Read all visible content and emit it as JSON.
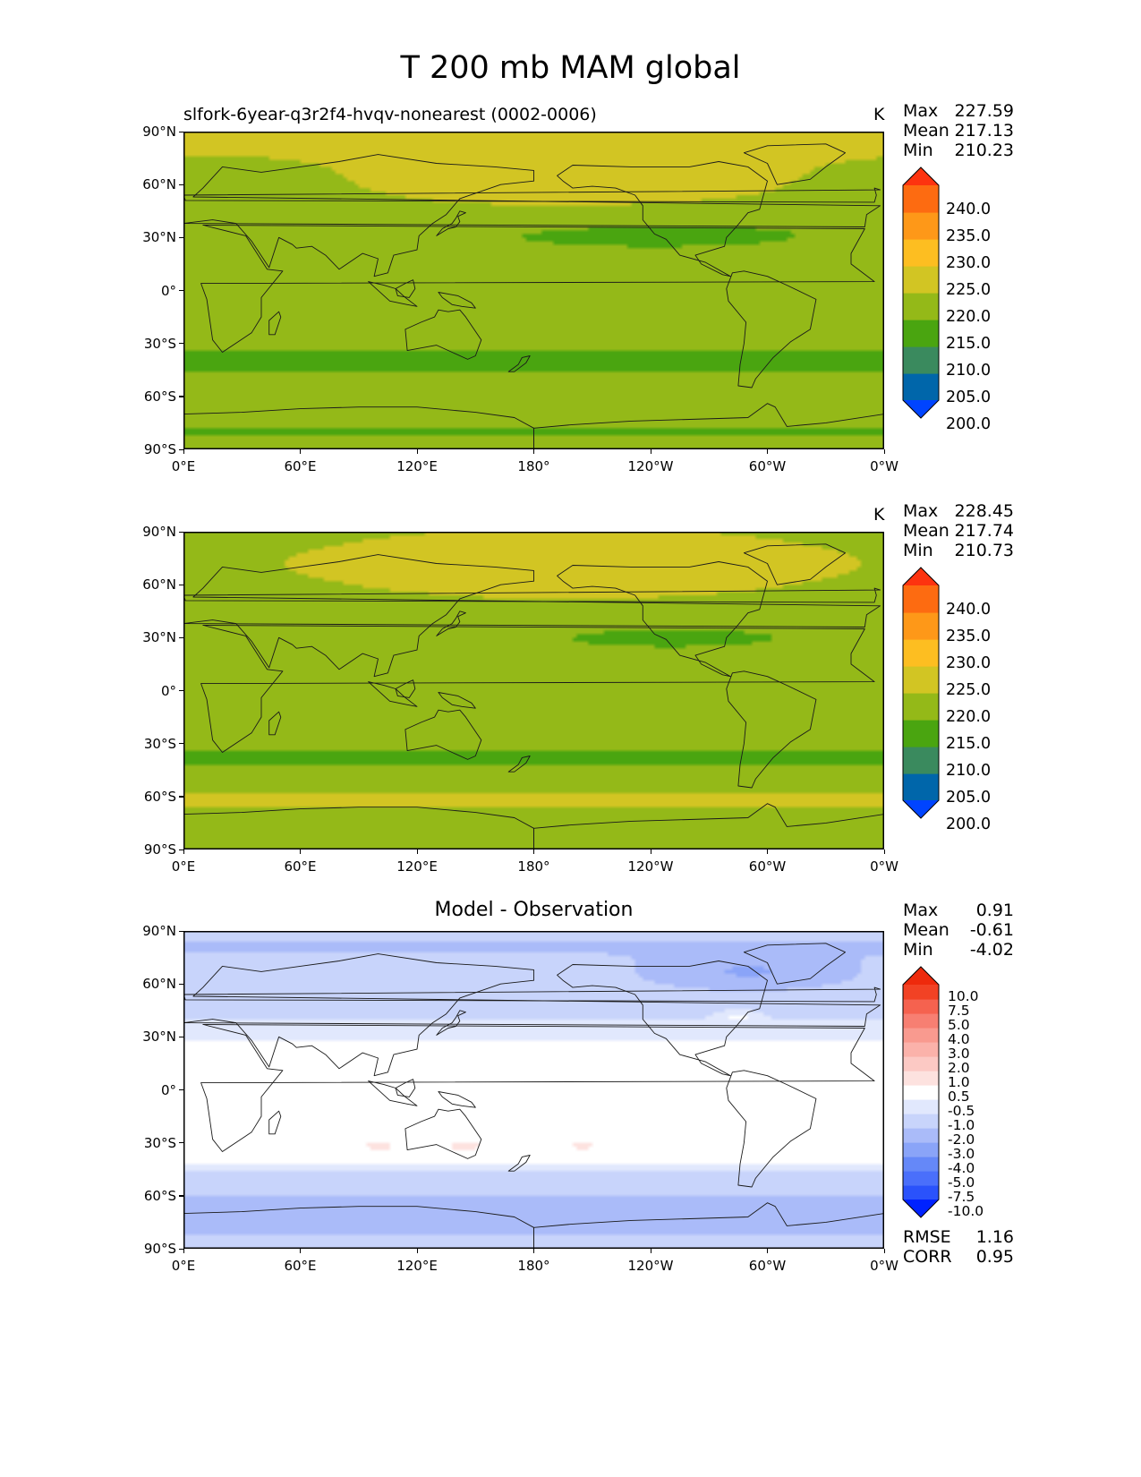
{
  "title": "T 200 mb MAM global",
  "axes": {
    "lat_ticks": [
      "90°N",
      "60°N",
      "30°N",
      "0°",
      "30°S",
      "60°S",
      "90°S"
    ],
    "lon_ticks": [
      "0°E",
      "60°E",
      "120°E",
      "180°",
      "120°W",
      "60°W",
      "0°W"
    ]
  },
  "colors": {
    "temp_levels": [
      "#0044ff",
      "#0066aa",
      "#3a8a5e",
      "#4aa510",
      "#94b918",
      "#d2c523",
      "#fdbe21",
      "#fe9818",
      "#fd6b11",
      "#fd330f"
    ],
    "diff_levels": [
      "#0022ff",
      "#2a52fb",
      "#4a6ffb",
      "#6588f8",
      "#8aa4f8",
      "#aabbf9",
      "#c8d4fb",
      "#e1e8fd",
      "#ffffff",
      "#fde2df",
      "#fcc9c4",
      "#fbb2aa",
      "#f99a8f",
      "#f77f72",
      "#f5624f",
      "#f24224",
      "#ee2a0c"
    ],
    "land": "#1a1a1a"
  },
  "chart_data": [
    {
      "type": "heatmap",
      "title": "slfork-6year-q3r2f4-hvqv-nonearest (0002-0006)",
      "units": "K",
      "stats": {
        "labels": [
          "Max",
          "Mean",
          "Min"
        ],
        "values": [
          "227.59",
          "217.13",
          "210.23"
        ]
      },
      "colorbar": {
        "levels": [
          200,
          205,
          210,
          215,
          220,
          225,
          230,
          235,
          240
        ],
        "labels": [
          "240.0",
          "235.0",
          "230.0",
          "225.0",
          "220.0",
          "215.0",
          "210.0",
          "205.0",
          "200.0"
        ]
      },
      "xlim": [
        0,
        360
      ],
      "ylim": [
        -90,
        90
      ]
    },
    {
      "type": "heatmap",
      "title": "",
      "units": "K",
      "stats": {
        "labels": [
          "Max",
          "Mean",
          "Min"
        ],
        "values": [
          "228.45",
          "217.74",
          "210.73"
        ]
      },
      "colorbar": {
        "levels": [
          200,
          205,
          210,
          215,
          220,
          225,
          230,
          235,
          240
        ],
        "labels": [
          "240.0",
          "235.0",
          "230.0",
          "225.0",
          "220.0",
          "215.0",
          "210.0",
          "205.0",
          "200.0"
        ]
      },
      "xlim": [
        0,
        360
      ],
      "ylim": [
        -90,
        90
      ]
    },
    {
      "type": "heatmap",
      "title": "Model - Observation",
      "units": "",
      "stats": {
        "labels": [
          "Max",
          "Mean",
          "Min"
        ],
        "values": [
          "0.91",
          "-0.61",
          "-4.02"
        ]
      },
      "colorbar": {
        "levels": [
          -10,
          -7.5,
          -5,
          -4,
          -3,
          -2,
          -1,
          -0.5,
          0.5,
          1,
          2,
          3,
          4,
          5,
          7.5,
          10
        ],
        "labels": [
          "10.0",
          "7.5",
          "5.0",
          "4.0",
          "3.0",
          "2.0",
          "1.0",
          "0.5",
          "-0.5",
          "-1.0",
          "-2.0",
          "-3.0",
          "-4.0",
          "-5.0",
          "-7.5",
          "-10.0"
        ]
      },
      "metrics": {
        "labels": [
          "RMSE",
          "CORR"
        ],
        "values": [
          "1.16",
          "0.95"
        ]
      },
      "xlim": [
        0,
        360
      ],
      "ylim": [
        -90,
        90
      ]
    }
  ]
}
